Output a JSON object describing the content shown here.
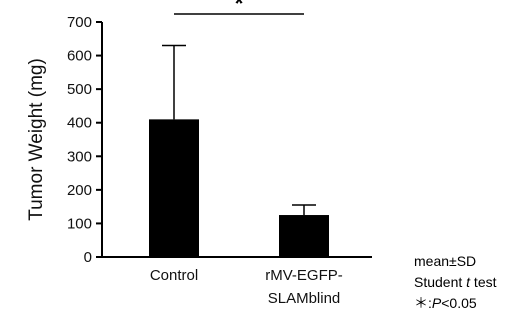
{
  "chart_data": {
    "type": "bar",
    "categories": [
      "Control",
      "rMV-EGFP-SLAMblind"
    ],
    "category_lines": [
      [
        "Control"
      ],
      [
        "rMV-EGFP-",
        "SLAMblind"
      ]
    ],
    "values": [
      410,
      125
    ],
    "error_bars_upper": [
      220,
      30
    ],
    "ylabel": "Tumor Weight (mg)",
    "xlabel": "",
    "ylim": [
      0,
      700
    ],
    "yticks": [
      0,
      100,
      200,
      300,
      400,
      500,
      600,
      700
    ],
    "bar_color": "#000000",
    "significance": {
      "between": [
        0,
        1
      ],
      "marker": "*"
    },
    "notes": [
      "mean±SD",
      "Student t test",
      "＊:P<0.05"
    ]
  }
}
